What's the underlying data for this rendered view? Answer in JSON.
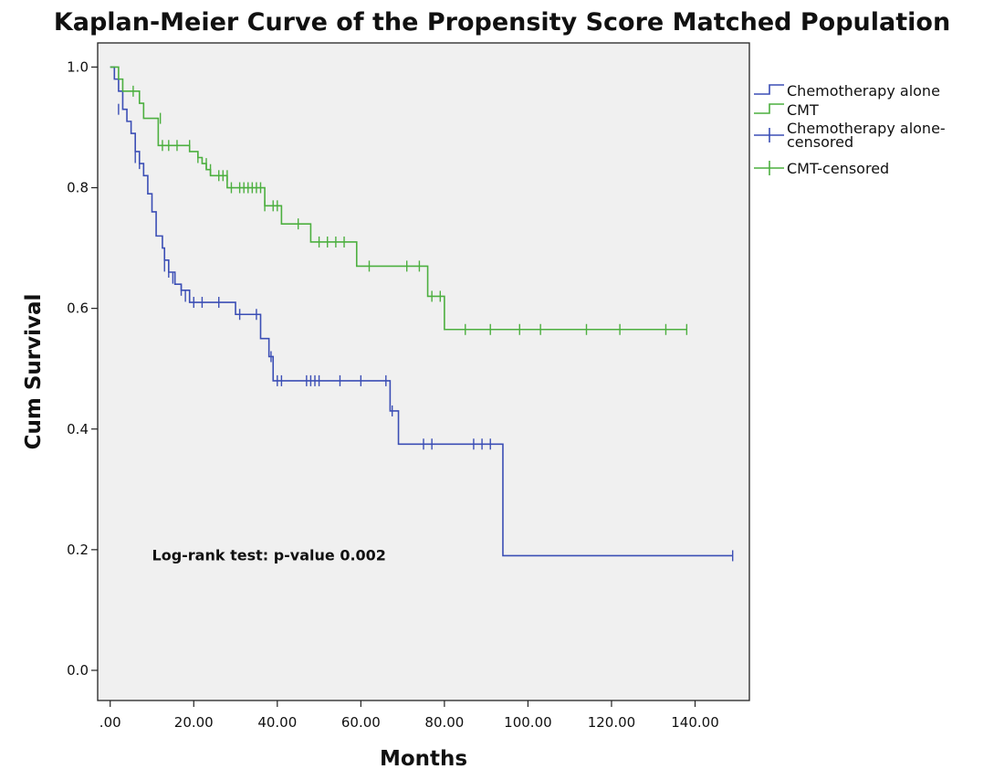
{
  "chart_data": {
    "type": "line",
    "subtype": "kaplan-meier step curve",
    "title": "Kaplan-Meier Curve of the Propensity Score Matched Population",
    "xlabel": "Months",
    "ylabel": "Cum Survival",
    "xlim": [
      -3,
      153
    ],
    "ylim": [
      -0.05,
      1.04
    ],
    "x_ticks": [
      0,
      20,
      40,
      60,
      80,
      100,
      120,
      140
    ],
    "x_tick_labels": [
      ".00",
      "20.00",
      "40.00",
      "60.00",
      "80.00",
      "100.00",
      "120.00",
      "140.00"
    ],
    "y_ticks": [
      0,
      0.2,
      0.4,
      0.6,
      0.8,
      1.0
    ],
    "y_tick_labels": [
      "0.0",
      "0.2",
      "0.4",
      "0.6",
      "0.8",
      "1.0"
    ],
    "grid": false,
    "plot_background": "#f0f0f0",
    "legend_position": "right",
    "legend": [
      {
        "label": "Chemotherapy alone",
        "kind": "step",
        "color": "#3b4eb5"
      },
      {
        "label": "CMT",
        "kind": "step",
        "color": "#4caf3f"
      },
      {
        "label": "Chemotherapy alone-censored",
        "lines": [
          "Chemotherapy alone-",
          "censored"
        ],
        "kind": "censor",
        "color": "#3b4eb5"
      },
      {
        "label": "CMT-censored",
        "kind": "censor",
        "color": "#4caf3f"
      }
    ],
    "annotations": [
      {
        "text": "Log-rank test: p-value 0.002",
        "x": 10,
        "y": 0.19
      }
    ],
    "series": [
      {
        "name": "Chemotherapy alone",
        "color": "#3b4eb5",
        "steps": [
          [
            0,
            1.0
          ],
          [
            1,
            0.98
          ],
          [
            2,
            0.96
          ],
          [
            3,
            0.93
          ],
          [
            4,
            0.91
          ],
          [
            5,
            0.89
          ],
          [
            6,
            0.86
          ],
          [
            7,
            0.84
          ],
          [
            8,
            0.82
          ],
          [
            9,
            0.79
          ],
          [
            10,
            0.76
          ],
          [
            11,
            0.72
          ],
          [
            12.5,
            0.7
          ],
          [
            13,
            0.68
          ],
          [
            14,
            0.66
          ],
          [
            15.5,
            0.64
          ],
          [
            17,
            0.63
          ],
          [
            19,
            0.61
          ],
          [
            30,
            0.59
          ],
          [
            36,
            0.55
          ],
          [
            38,
            0.52
          ],
          [
            39,
            0.48
          ],
          [
            67,
            0.43
          ],
          [
            69,
            0.375
          ],
          [
            94,
            0.19
          ]
        ],
        "end_x": 149,
        "censored": [
          [
            2,
            0.93
          ],
          [
            6,
            0.85
          ],
          [
            7,
            0.84
          ],
          [
            13,
            0.67
          ],
          [
            14,
            0.66
          ],
          [
            15,
            0.65
          ],
          [
            17,
            0.63
          ],
          [
            18,
            0.62
          ],
          [
            19,
            0.62
          ],
          [
            20,
            0.61
          ],
          [
            22,
            0.61
          ],
          [
            26,
            0.61
          ],
          [
            31,
            0.59
          ],
          [
            35,
            0.59
          ],
          [
            38.5,
            0.52
          ],
          [
            40,
            0.48
          ],
          [
            41,
            0.48
          ],
          [
            47,
            0.48
          ],
          [
            48,
            0.48
          ],
          [
            49,
            0.48
          ],
          [
            50,
            0.48
          ],
          [
            55,
            0.48
          ],
          [
            60,
            0.48
          ],
          [
            66,
            0.48
          ],
          [
            67.5,
            0.43
          ],
          [
            75,
            0.375
          ],
          [
            77,
            0.375
          ],
          [
            87,
            0.375
          ],
          [
            89,
            0.375
          ],
          [
            91,
            0.375
          ],
          [
            149,
            0.19
          ]
        ]
      },
      {
        "name": "CMT",
        "color": "#4caf3f",
        "steps": [
          [
            0,
            1.0
          ],
          [
            2,
            0.98
          ],
          [
            3,
            0.96
          ],
          [
            7,
            0.94
          ],
          [
            8,
            0.915
          ],
          [
            11.5,
            0.87
          ],
          [
            19,
            0.86
          ],
          [
            21,
            0.85
          ],
          [
            22,
            0.84
          ],
          [
            23,
            0.83
          ],
          [
            24,
            0.82
          ],
          [
            28,
            0.8
          ],
          [
            37,
            0.77
          ],
          [
            41,
            0.74
          ],
          [
            48,
            0.71
          ],
          [
            59,
            0.67
          ],
          [
            76,
            0.62
          ],
          [
            80,
            0.565
          ]
        ],
        "end_x": 138,
        "censored": [
          [
            5.5,
            0.96
          ],
          [
            12,
            0.915
          ],
          [
            12.5,
            0.87
          ],
          [
            14,
            0.87
          ],
          [
            16,
            0.87
          ],
          [
            19,
            0.87
          ],
          [
            21,
            0.85
          ],
          [
            23,
            0.84
          ],
          [
            24,
            0.83
          ],
          [
            26,
            0.82
          ],
          [
            27,
            0.82
          ],
          [
            28,
            0.82
          ],
          [
            29,
            0.8
          ],
          [
            31,
            0.8
          ],
          [
            32,
            0.8
          ],
          [
            33,
            0.8
          ],
          [
            34,
            0.8
          ],
          [
            35,
            0.8
          ],
          [
            36,
            0.8
          ],
          [
            37,
            0.77
          ],
          [
            39,
            0.77
          ],
          [
            40,
            0.77
          ],
          [
            45,
            0.74
          ],
          [
            50,
            0.71
          ],
          [
            52,
            0.71
          ],
          [
            54,
            0.71
          ],
          [
            56,
            0.71
          ],
          [
            62,
            0.67
          ],
          [
            71,
            0.67
          ],
          [
            74,
            0.67
          ],
          [
            77,
            0.62
          ],
          [
            79,
            0.62
          ],
          [
            85,
            0.565
          ],
          [
            91,
            0.565
          ],
          [
            98,
            0.565
          ],
          [
            103,
            0.565
          ],
          [
            114,
            0.565
          ],
          [
            122,
            0.565
          ],
          [
            133,
            0.565
          ],
          [
            138,
            0.565
          ]
        ]
      }
    ]
  }
}
